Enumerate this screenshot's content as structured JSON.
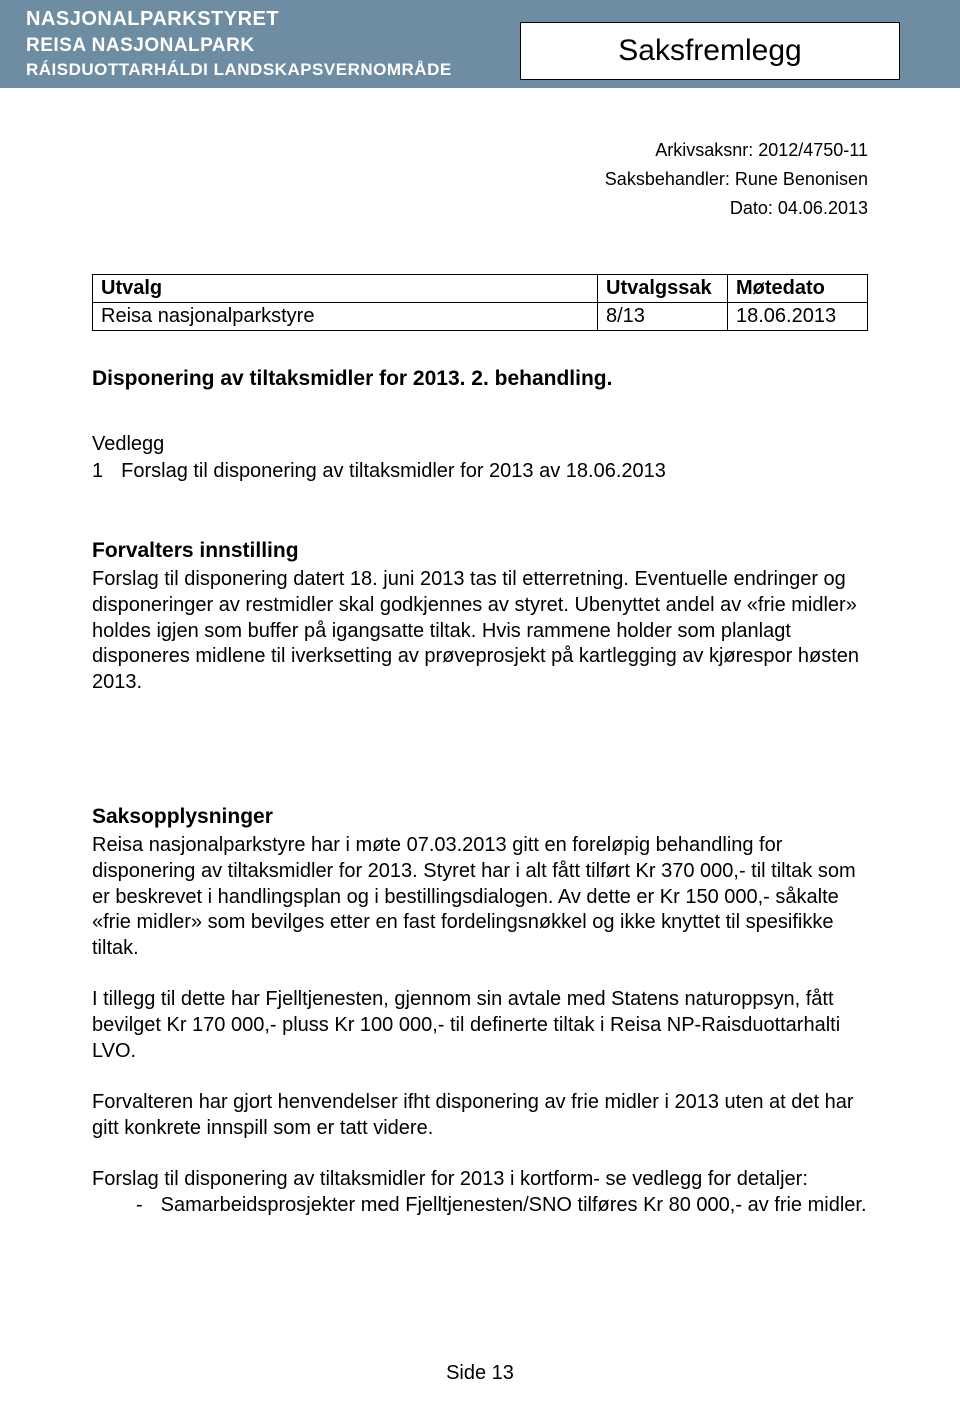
{
  "header": {
    "org_line1": "NASJONALPARKSTYRET",
    "org_line2": "REISA NASJONALPARK",
    "org_line3": "RÁISDUOTTARHÁLDI LANDSKAPSVERNOMRÅDE",
    "title": "Saksfremlegg",
    "band_color": "#6e8da3"
  },
  "meta": {
    "arkiv": "Arkivsaksnr: 2012/4750-11",
    "saksbehandler": "Saksbehandler: Rune Benonisen",
    "dato": "Dato: 04.06.2013"
  },
  "table": {
    "headers": {
      "utvalg": "Utvalg",
      "sak": "Utvalgssak",
      "motedato": "Møtedato"
    },
    "row": {
      "utvalg": "Reisa nasjonalparkstyre",
      "sak": "8/13",
      "motedato": "18.06.2013"
    }
  },
  "doc_title": "Disponering av tiltaksmidler for 2013. 2. behandling.",
  "vedlegg": {
    "label": "Vedlegg",
    "num": "1",
    "text": "Forslag til disponering av tiltaksmidler for 2013 av 18.06.2013"
  },
  "innstilling": {
    "heading": "Forvalters innstilling",
    "text": "Forslag til disponering datert 18. juni 2013 tas til etterretning. Eventuelle endringer og disponeringer av restmidler skal godkjennes av styret. Ubenyttet andel av «frie midler» holdes igjen som buffer på igangsatte tiltak. Hvis rammene holder som planlagt disponeres midlene til iverksetting av prøveprosjekt på kartlegging av kjørespor høsten 2013."
  },
  "sakso": {
    "heading": "Saksopplysninger",
    "p1": "Reisa nasjonalparkstyre har i møte 07.03.2013 gitt en foreløpig behandling for disponering av tiltaksmidler for 2013. Styret har i alt fått tilført Kr 370 000,- til tiltak som er beskrevet i handlingsplan og i bestillingsdialogen. Av dette er Kr 150 000,- såkalte «frie midler» som bevilges etter en fast fordelingsnøkkel og ikke knyttet til spesifikke tiltak.",
    "p2": "I tillegg til dette har Fjelltjenesten, gjennom sin avtale med Statens naturoppsyn, fått bevilget Kr 170 000,- pluss Kr 100 000,- til definerte tiltak i Reisa NP-Raisduottarhalti LVO.",
    "p3": "Forvalteren har gjort henvendelser ifht disponering av frie midler i 2013 uten at det har gitt konkrete innspill som er tatt videre.",
    "p4": "Forslag til disponering av tiltaksmidler for 2013 i kortform- se vedlegg for detaljer:",
    "bullet": "Samarbeidsprosjekter med Fjelltjenesten/SNO tilføres Kr 80 000,- av frie midler."
  },
  "footer": "Side 13"
}
